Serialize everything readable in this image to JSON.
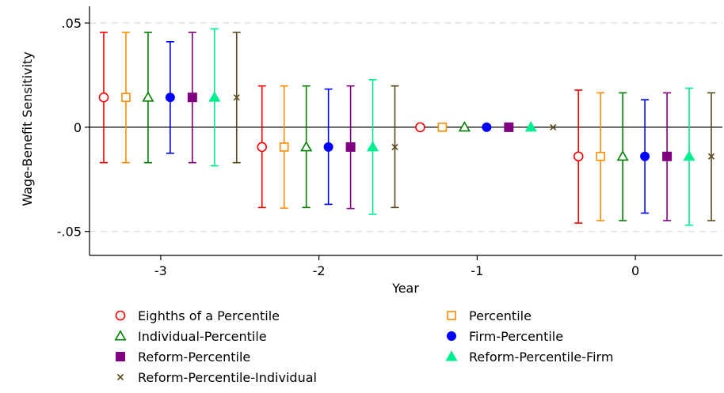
{
  "chart_data": {
    "type": "scatter",
    "subtype": "coefficient plot with confidence intervals",
    "xlabel": "Year",
    "ylabel": "Wage-Benefit Sensitivity",
    "x_ticks": [
      -3,
      -2,
      -1,
      0
    ],
    "x_tick_labels": [
      "-3",
      "-2",
      "-1",
      "0"
    ],
    "y_ticks": [
      -0.05,
      0,
      0.05
    ],
    "y_tick_labels": [
      "-.05",
      "0",
      ".05"
    ],
    "xlim": [
      -3.45,
      0.55
    ],
    "ylim": [
      -0.0615,
      0.058
    ],
    "grid": "horizontal dashed at y ticks",
    "reference_line": 0,
    "legend_placement": "bottom, two columns",
    "years": [
      -3,
      -2,
      -1,
      0
    ],
    "series": [
      {
        "name": "Eighths of a Percentile",
        "color": "#ff0000",
        "marker": "hollow-circle",
        "x": [
          -3.36,
          -2.36,
          -1.36,
          -0.36
        ],
        "y": [
          0.0143,
          -0.0095,
          0.0,
          -0.014
        ],
        "ci_low": [
          -0.017,
          -0.0385,
          0.0,
          -0.046
        ],
        "ci_high": [
          0.0455,
          0.0198,
          0.0,
          0.0178
        ]
      },
      {
        "name": "Percentile",
        "color": "#ff8c00",
        "marker": "hollow-square",
        "x": [
          -3.22,
          -2.22,
          -1.22,
          -0.22
        ],
        "y": [
          0.0143,
          -0.0095,
          0.0,
          -0.014
        ],
        "ci_low": [
          -0.017,
          -0.0388,
          0.0,
          -0.0448
        ],
        "ci_high": [
          0.0455,
          0.0198,
          0.0,
          0.0165
        ]
      },
      {
        "name": "Individual-Percentile",
        "color": "#008000",
        "marker": "hollow-triangle",
        "x": [
          -3.08,
          -2.08,
          -1.08,
          -0.08
        ],
        "y": [
          0.0143,
          -0.0095,
          0.0,
          -0.014
        ],
        "ci_low": [
          -0.017,
          -0.0385,
          0.0,
          -0.0448
        ],
        "ci_high": [
          0.0455,
          0.0198,
          0.0,
          0.0165
        ]
      },
      {
        "name": "Firm-Percentile",
        "color": "#0000ff",
        "marker": "filled-circle",
        "x": [
          -2.94,
          -1.94,
          -0.94,
          0.06
        ],
        "y": [
          0.0143,
          -0.0095,
          0.0,
          -0.014
        ],
        "ci_low": [
          -0.0125,
          -0.037,
          0.0,
          -0.0412
        ],
        "ci_high": [
          0.041,
          0.0183,
          0.0,
          0.0132
        ]
      },
      {
        "name": "Reform-Percentile",
        "color": "#800080",
        "marker": "filled-square",
        "x": [
          -2.8,
          -1.8,
          -0.8,
          0.2
        ],
        "y": [
          0.0143,
          -0.0095,
          0.0,
          -0.014
        ],
        "ci_low": [
          -0.017,
          -0.039,
          0.0,
          -0.0448
        ],
        "ci_high": [
          0.0455,
          0.0198,
          0.0,
          0.0165
        ]
      },
      {
        "name": "Reform-Percentile-Firm",
        "color": "#00ee90",
        "marker": "filled-triangle",
        "x": [
          -2.66,
          -1.66,
          -0.66,
          0.34
        ],
        "y": [
          0.0143,
          -0.0095,
          0.0,
          -0.014
        ],
        "ci_low": [
          -0.0185,
          -0.0418,
          0.0,
          -0.047
        ],
        "ci_high": [
          0.0472,
          0.0228,
          0.0,
          0.0187
        ]
      },
      {
        "name": "Reform-Percentile-Individual",
        "color": "#5c4a1e",
        "marker": "x",
        "x": [
          -2.52,
          -1.52,
          -0.52,
          0.48
        ],
        "y": [
          0.0143,
          -0.0095,
          0.0,
          -0.014
        ],
        "ci_low": [
          -0.017,
          -0.0385,
          0.0,
          -0.0448
        ],
        "ci_high": [
          0.0455,
          0.0198,
          0.0,
          0.0165
        ]
      }
    ]
  }
}
